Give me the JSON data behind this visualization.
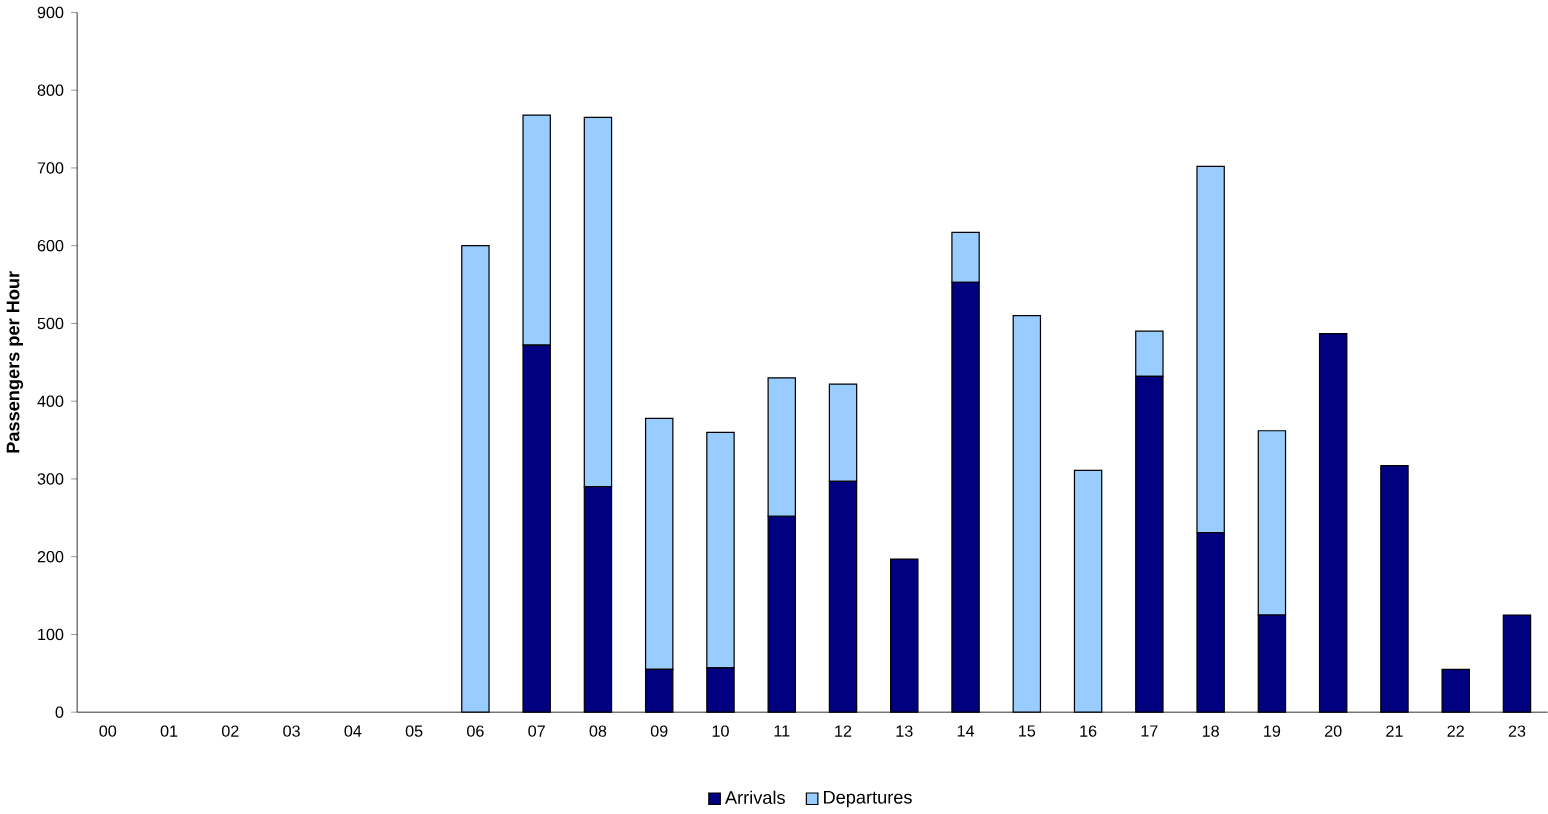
{
  "chart_data": {
    "type": "bar",
    "stacked": true,
    "ylabel": "Passengers per Hour",
    "categories": [
      "00",
      "01",
      "02",
      "03",
      "04",
      "05",
      "06",
      "07",
      "08",
      "09",
      "10",
      "11",
      "12",
      "13",
      "14",
      "15",
      "16",
      "17",
      "18",
      "19",
      "20",
      "21",
      "22",
      "23"
    ],
    "series": [
      {
        "name": "Arrivals",
        "color": "#000080",
        "values": [
          0,
          0,
          0,
          0,
          0,
          0,
          0,
          472,
          290,
          55,
          57,
          252,
          297,
          197,
          553,
          0,
          0,
          432,
          231,
          125,
          487,
          317,
          55,
          125
        ]
      },
      {
        "name": "Departures",
        "color": "#99ccff",
        "values": [
          0,
          0,
          0,
          0,
          0,
          0,
          600,
          296,
          475,
          323,
          303,
          178,
          125,
          0,
          64,
          510,
          311,
          58,
          471,
          237,
          0,
          0,
          0,
          0
        ]
      }
    ],
    "ylim": [
      0,
      900
    ],
    "yticks": [
      0,
      100,
      200,
      300,
      400,
      500,
      600,
      700,
      800,
      900
    ],
    "legend": "bottom",
    "grid": false
  }
}
